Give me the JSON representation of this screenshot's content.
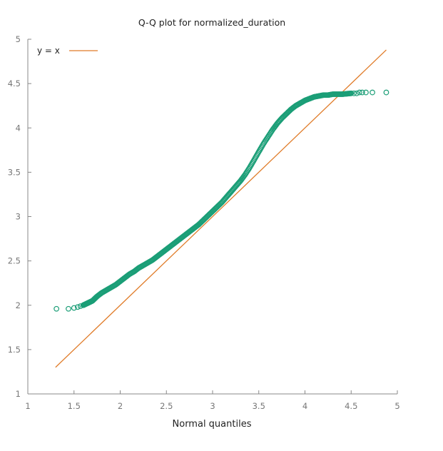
{
  "chart_data": {
    "type": "scatter",
    "title": "Q-Q plot for normalized_duration",
    "xlabel": "Normal quantiles",
    "ylabel": "",
    "xlim": [
      1,
      5
    ],
    "ylim": [
      1,
      5
    ],
    "xticks": [
      "1",
      "1.5",
      "2",
      "2.5",
      "3",
      "3.5",
      "4",
      "4.5",
      "5"
    ],
    "yticks": [
      "1",
      "1.5",
      "2",
      "2.5",
      "3",
      "3.5",
      "4",
      "4.5",
      "5"
    ],
    "legend": {
      "position": "top-left",
      "entries": [
        {
          "label": "y = x",
          "color": "#e07b28"
        }
      ]
    },
    "reference_line": {
      "name": "y = x",
      "x": [
        1.3,
        4.88
      ],
      "y": [
        1.3,
        4.88
      ],
      "color": "#e07b28"
    },
    "series": [
      {
        "name": "normalized_duration",
        "marker": "open-circle",
        "color": "#1b9e77",
        "x": [
          1.31,
          1.44,
          1.5,
          1.54,
          1.57,
          1.6,
          1.62,
          1.64,
          1.66,
          1.68,
          1.7,
          1.72,
          1.75,
          1.8,
          1.85,
          1.9,
          1.95,
          2.0,
          2.05,
          2.1,
          2.15,
          2.2,
          2.25,
          2.3,
          2.35,
          2.4,
          2.45,
          2.5,
          2.55,
          2.6,
          2.65,
          2.7,
          2.75,
          2.8,
          2.85,
          2.9,
          2.95,
          3.0,
          3.05,
          3.1,
          3.15,
          3.2,
          3.25,
          3.3,
          3.35,
          3.4,
          3.45,
          3.5,
          3.55,
          3.6,
          3.65,
          3.7,
          3.75,
          3.8,
          3.85,
          3.9,
          3.95,
          4.0,
          4.05,
          4.1,
          4.15,
          4.2,
          4.25,
          4.3,
          4.35,
          4.4,
          4.45,
          4.5,
          4.53,
          4.56,
          4.59,
          4.62,
          4.66,
          4.73,
          4.88
        ],
        "y": [
          1.96,
          1.96,
          1.97,
          1.98,
          1.99,
          2.0,
          2.01,
          2.02,
          2.03,
          2.04,
          2.05,
          2.07,
          2.1,
          2.14,
          2.17,
          2.2,
          2.23,
          2.27,
          2.31,
          2.35,
          2.38,
          2.42,
          2.45,
          2.48,
          2.51,
          2.55,
          2.59,
          2.63,
          2.67,
          2.71,
          2.75,
          2.79,
          2.83,
          2.87,
          2.91,
          2.96,
          3.01,
          3.06,
          3.11,
          3.16,
          3.22,
          3.28,
          3.34,
          3.4,
          3.47,
          3.55,
          3.64,
          3.73,
          3.82,
          3.9,
          3.98,
          4.05,
          4.11,
          4.16,
          4.21,
          4.25,
          4.28,
          4.31,
          4.33,
          4.35,
          4.36,
          4.37,
          4.37,
          4.38,
          4.38,
          4.38,
          4.385,
          4.39,
          4.39,
          4.39,
          4.4,
          4.4,
          4.4,
          4.4,
          4.4
        ]
      }
    ]
  }
}
